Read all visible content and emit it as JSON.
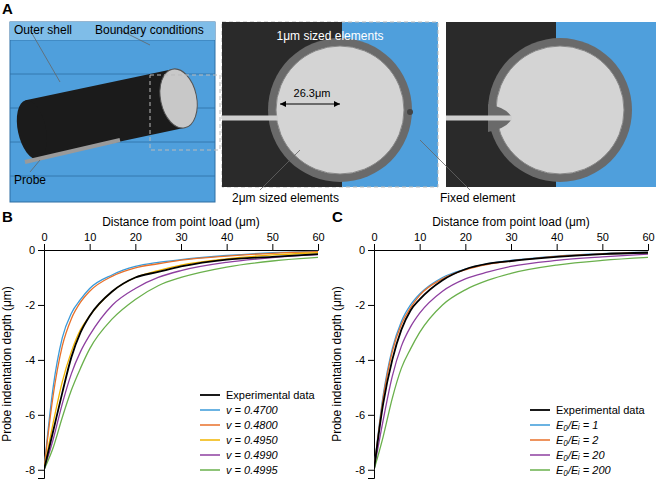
{
  "figure": {
    "panel_labels": [
      "A",
      "B",
      "C"
    ]
  },
  "diagram": {
    "labels": {
      "outer_shell": "Outer shell",
      "boundary_conditions": "Boundary conditions",
      "elements_1um": "1μm sized elements",
      "elements_2um": "2μm sized elements",
      "probe": "Probe",
      "fixed_element": "Fixed element",
      "radius": "26.3μm"
    }
  },
  "chart_data": [
    {
      "type": "line",
      "x_label": "Distance from point load (μm)",
      "y_label": "Probe indentation depth (μm)",
      "x": [
        0,
        2,
        4,
        6,
        8,
        10,
        15,
        20,
        25,
        30,
        40,
        50,
        60
      ],
      "series": [
        {
          "name": "Experimental data",
          "color": "#000000",
          "values": [
            -8,
            -6.6,
            -5.2,
            -3.9,
            -3.0,
            -2.4,
            -1.5,
            -1.0,
            -0.8,
            -0.6,
            -0.35,
            -0.25,
            -0.15
          ]
        },
        {
          "name": "v = 0.4700",
          "color": "#3a9ad9",
          "values": [
            -8,
            -5.0,
            -3.2,
            -2.3,
            -1.8,
            -1.4,
            -0.9,
            -0.6,
            -0.45,
            -0.35,
            -0.2,
            -0.1,
            -0.05
          ]
        },
        {
          "name": "v = 0.4800",
          "color": "#e8702a",
          "values": [
            -8,
            -5.3,
            -3.5,
            -2.5,
            -1.9,
            -1.5,
            -0.95,
            -0.65,
            -0.5,
            -0.37,
            -0.22,
            -0.12,
            -0.06
          ]
        },
        {
          "name": "v = 0.4950",
          "color": "#f0b400",
          "values": [
            -8,
            -6.3,
            -4.8,
            -3.7,
            -2.9,
            -2.4,
            -1.5,
            -1.0,
            -0.75,
            -0.55,
            -0.32,
            -0.18,
            -0.1
          ]
        },
        {
          "name": "v = 0.4990",
          "color": "#8e3fa0",
          "values": [
            -8,
            -6.9,
            -5.6,
            -4.5,
            -3.7,
            -3.1,
            -2.0,
            -1.4,
            -1.0,
            -0.75,
            -0.45,
            -0.28,
            -0.17
          ]
        },
        {
          "name": "v = 0.4995",
          "color": "#6ab04c",
          "values": [
            -8,
            -7.2,
            -6.1,
            -5.1,
            -4.3,
            -3.6,
            -2.5,
            -1.8,
            -1.3,
            -1.0,
            -0.62,
            -0.4,
            -0.27
          ]
        }
      ],
      "xlim": [
        0,
        60
      ],
      "ylim": [
        -8.3,
        0
      ],
      "xticks": [
        0,
        10,
        20,
        30,
        40,
        50,
        60
      ],
      "yticks": [
        -8,
        -6,
        -4,
        -2,
        0
      ],
      "legend": "lower right"
    },
    {
      "type": "line",
      "x_label": "Distance from point load (μm)",
      "y_label": "Probe indentation depth (μm)",
      "x": [
        0,
        2,
        4,
        6,
        8,
        10,
        15,
        20,
        25,
        30,
        40,
        50,
        60
      ],
      "series": [
        {
          "name": "Experimental data",
          "color": "#000000",
          "values": [
            -8,
            -5.6,
            -4.0,
            -2.9,
            -2.2,
            -1.8,
            -1.1,
            -0.7,
            -0.5,
            -0.4,
            -0.25,
            -0.15,
            -0.1
          ]
        },
        {
          "name": "E₀/Eᵢ = 1",
          "color": "#3a9ad9",
          "values": [
            -8,
            -5.3,
            -3.6,
            -2.6,
            -2.0,
            -1.6,
            -1.0,
            -0.7,
            -0.5,
            -0.38,
            -0.22,
            -0.13,
            -0.08
          ]
        },
        {
          "name": "E₀/Eᵢ = 2",
          "color": "#e8702a",
          "values": [
            -8,
            -5.4,
            -3.7,
            -2.7,
            -2.1,
            -1.65,
            -1.05,
            -0.72,
            -0.52,
            -0.4,
            -0.23,
            -0.14,
            -0.09
          ]
        },
        {
          "name": "E₀/Eᵢ = 20",
          "color": "#8e3fa0",
          "values": [
            -8,
            -6.2,
            -4.6,
            -3.5,
            -2.8,
            -2.3,
            -1.5,
            -1.05,
            -0.8,
            -0.6,
            -0.38,
            -0.25,
            -0.15
          ]
        },
        {
          "name": "E₀/Eᵢ = 200",
          "color": "#6ab04c",
          "values": [
            -8,
            -6.8,
            -5.4,
            -4.3,
            -3.6,
            -3.0,
            -2.0,
            -1.45,
            -1.1,
            -0.85,
            -0.55,
            -0.38,
            -0.27
          ]
        }
      ],
      "xlim": [
        0,
        60
      ],
      "ylim": [
        -8.3,
        0
      ],
      "xticks": [
        0,
        10,
        20,
        30,
        40,
        50,
        60
      ],
      "yticks": [
        -8,
        -6,
        -4,
        -2,
        0
      ],
      "legend": "lower right"
    }
  ]
}
